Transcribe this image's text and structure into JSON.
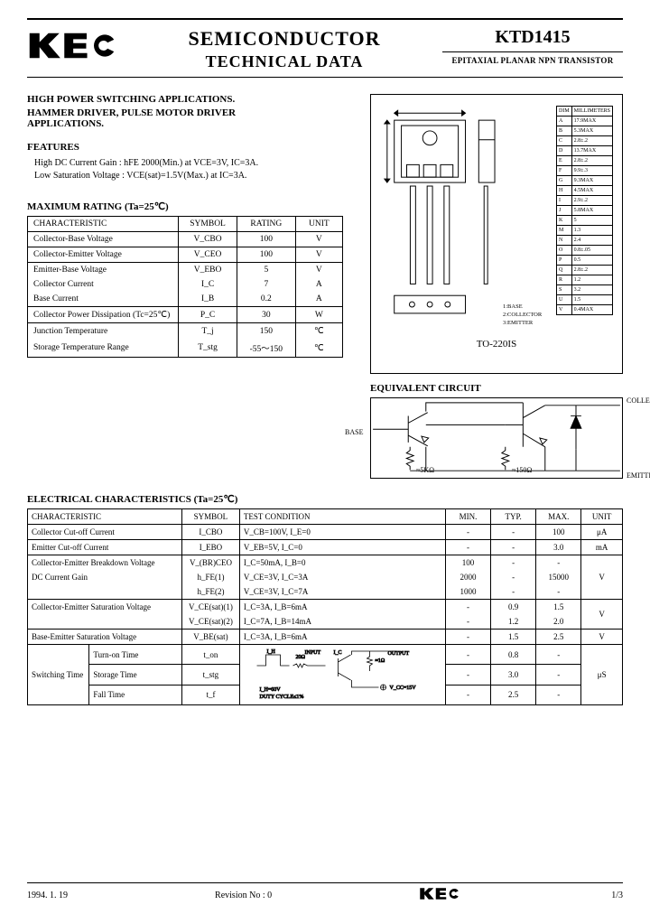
{
  "header": {
    "company": "KEC",
    "title_l1": "SEMICONDUCTOR",
    "title_l2": "TECHNICAL DATA",
    "part_number": "KTD1415",
    "subtitle": "EPITAXIAL PLANAR NPN TRANSISTOR"
  },
  "applications": {
    "title": "HIGH POWER SWITCHING APPLICATIONS.",
    "line2": "HAMMER DRIVER, PULSE MOTOR DRIVER",
    "line3": "APPLICATIONS."
  },
  "features": {
    "title": "FEATURES",
    "items": [
      "High DC Current Gain : hFE 2000(Min.) at VCE=3V, IC=3A.",
      "Low Saturation Voltage : VCE(sat)=1.5V(Max.) at IC=3A."
    ]
  },
  "package": {
    "label": "TO-220IS",
    "pin_labels": [
      "1:BASE",
      "2:COLLECTOR",
      "3:EMITTER"
    ],
    "dim_header": [
      "DIM",
      "MILLIMETERS"
    ],
    "dims": [
      [
        "A",
        "17.9MAX"
      ],
      [
        "B",
        "5.3MAX"
      ],
      [
        "C",
        "2.8±.2"
      ],
      [
        "D",
        "13.7MAX"
      ],
      [
        "E",
        "2.8±.2"
      ],
      [
        "F",
        "9.9±.3"
      ],
      [
        "G",
        "9.3MAX"
      ],
      [
        "H",
        "4.5MAX"
      ],
      [
        "I",
        "2.9±.2"
      ],
      [
        "J",
        "5.8MAX"
      ],
      [
        "K",
        "5"
      ],
      [
        "M",
        "1.3"
      ],
      [
        "N",
        "2.4"
      ],
      [
        "O",
        "0.8±.05"
      ],
      [
        "P",
        "0.5"
      ],
      [
        "Q",
        "2.8±.2"
      ],
      [
        "R",
        "1.2"
      ],
      [
        "S",
        "3.2"
      ],
      [
        "U",
        "1.5"
      ],
      [
        "V",
        "0.4MAX"
      ]
    ]
  },
  "max_rating": {
    "title": "MAXIMUM RATING (Ta=25℃)",
    "columns": [
      "CHARACTERISTIC",
      "SYMBOL",
      "RATING",
      "UNIT"
    ],
    "groups": [
      [
        [
          "Collector-Base Voltage",
          "V_CBO",
          "100",
          "V"
        ]
      ],
      [
        [
          "Collector-Emitter Voltage",
          "V_CEO",
          "100",
          "V"
        ]
      ],
      [
        [
          "Emitter-Base Voltage",
          "V_EBO",
          "5",
          "V"
        ],
        [
          "Collector Current",
          "I_C",
          "7",
          "A"
        ],
        [
          "Base Current",
          "I_B",
          "0.2",
          "A"
        ]
      ],
      [
        [
          "Collector Power Dissipation (Tc=25℃)",
          "P_C",
          "30",
          "W"
        ]
      ],
      [
        [
          "Junction Temperature",
          "T_j",
          "150",
          "℃"
        ],
        [
          "Storage Temperature Range",
          "T_stg",
          "-55～150",
          "℃"
        ]
      ]
    ]
  },
  "equiv_circuit": {
    "title": "EQUIVALENT CIRCUIT",
    "labels": {
      "base": "BASE",
      "collector": "COLLECTOR",
      "emitter": "EMITTER",
      "r1": "≈5KΩ",
      "r2": "≈150Ω"
    }
  },
  "electrical": {
    "title": "ELECTRICAL CHARACTERISTICS (Ta=25℃)",
    "columns": [
      "CHARACTERISTIC",
      "SYMBOL",
      "TEST CONDITION",
      "MIN.",
      "TYP.",
      "MAX.",
      "UNIT"
    ],
    "rows": [
      {
        "char": "Collector Cut-off Current",
        "sym": "I_CBO",
        "test": "V_CB=100V, I_E=0",
        "min": "-",
        "typ": "-",
        "max": "100",
        "unit": "μA"
      },
      {
        "char": "Emitter Cut-off Current",
        "sym": "I_EBO",
        "test": "V_EB=5V, I_C=0",
        "min": "-",
        "typ": "-",
        "max": "3.0",
        "unit": "mA"
      },
      {
        "char": "Collector-Emitter Breakdown Voltage",
        "sym": "V_(BR)CEO",
        "test": "I_C=50mA, I_B=0",
        "min": "100",
        "typ": "-",
        "max": "-",
        "unit": "V",
        "group": true
      },
      {
        "char": "DC Current Gain",
        "sym": "h_FE(1)",
        "test": "V_CE=3V, I_C=3A",
        "min": "2000",
        "typ": "-",
        "max": "15000",
        "unit": "",
        "sub": true
      },
      {
        "char": "",
        "sym": "h_FE(2)",
        "test": "V_CE=3V, I_C=7A",
        "min": "1000",
        "typ": "-",
        "max": "-",
        "unit": "",
        "sub": true
      },
      {
        "char": "Collector-Emitter Saturation Voltage",
        "sym": "V_CE(sat)(1)",
        "test": "I_C=3A, I_B=6mA",
        "min": "-",
        "typ": "0.9",
        "max": "1.5",
        "unit": "V",
        "group": true
      },
      {
        "char": "",
        "sym": "V_CE(sat)(2)",
        "test": "I_C=7A, I_B=14mA",
        "min": "-",
        "typ": "1.2",
        "max": "2.0",
        "unit": "",
        "sub": true
      },
      {
        "char": "Base-Emitter Saturation Voltage",
        "sym": "V_BE(sat)",
        "test": "I_C=3A, I_B=6mA",
        "min": "-",
        "typ": "1.5",
        "max": "2.5",
        "unit": "V"
      }
    ],
    "switching": {
      "label": "Switching Time",
      "rows": [
        {
          "name": "Turn-on Time",
          "sym": "t_on",
          "min": "-",
          "typ": "0.8",
          "max": "-"
        },
        {
          "name": "Storage Time",
          "sym": "t_stg",
          "min": "-",
          "typ": "3.0",
          "max": "-"
        },
        {
          "name": "Fall Time",
          "sym": "t_f",
          "min": "-",
          "typ": "2.5",
          "max": "-"
        }
      ],
      "unit": "μS",
      "diagram_labels": {
        "input": "INPUT",
        "output": "OUTPUT",
        "rin": "20Ω",
        "rl": "≈1Ω",
        "ih": "I_H=60V",
        "duty": "DUTY CYCLE≤1%",
        "vcc": "V_CC=15V",
        "ic": "I_C"
      }
    }
  },
  "footer": {
    "date": "1994. 1. 19",
    "rev": "Revision No : 0",
    "logo": "KEC",
    "page": "1/3"
  },
  "colors": {
    "text": "#000000",
    "bg": "#ffffff",
    "line": "#000000"
  }
}
